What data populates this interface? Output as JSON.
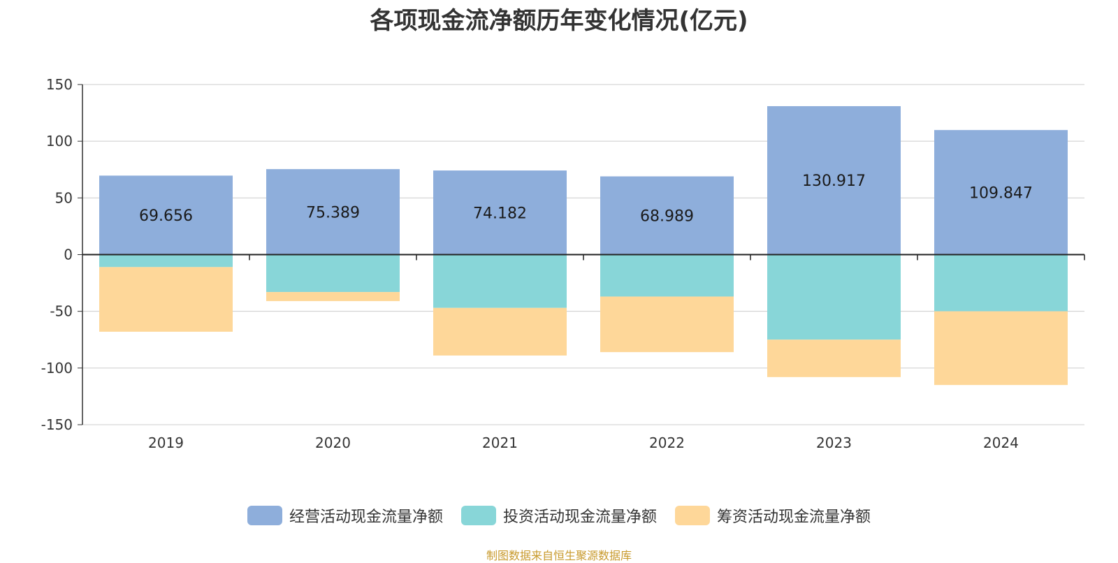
{
  "title": "各项现金流净额历年变化情况(亿元)",
  "source_note": "制图数据来自恒生聚源数据库",
  "chart_data": {
    "type": "bar",
    "stacked": true,
    "title": "各项现金流净额历年变化情况(亿元)",
    "categories": [
      "2019",
      "2020",
      "2021",
      "2022",
      "2023",
      "2024"
    ],
    "series": [
      {
        "name": "经营活动现金流量净额",
        "color": "#8eaedb",
        "values": [
          69.656,
          75.389,
          74.182,
          68.989,
          130.917,
          109.847
        ],
        "show_labels": true
      },
      {
        "name": "投资活动现金流量净额",
        "color": "#88d6d8",
        "values": [
          -11,
          -33,
          -47,
          -37,
          -75,
          -50
        ],
        "show_labels": false
      },
      {
        "name": "筹资活动现金流量净额",
        "color": "#fed799",
        "values": [
          -57,
          -8,
          -42,
          -49,
          -33,
          -65
        ],
        "show_labels": false
      }
    ],
    "ylim": [
      -150,
      150
    ],
    "yticks": [
      150,
      100,
      50,
      0,
      -50,
      -100,
      -150
    ],
    "grid": true,
    "legend_position": "bottom"
  }
}
